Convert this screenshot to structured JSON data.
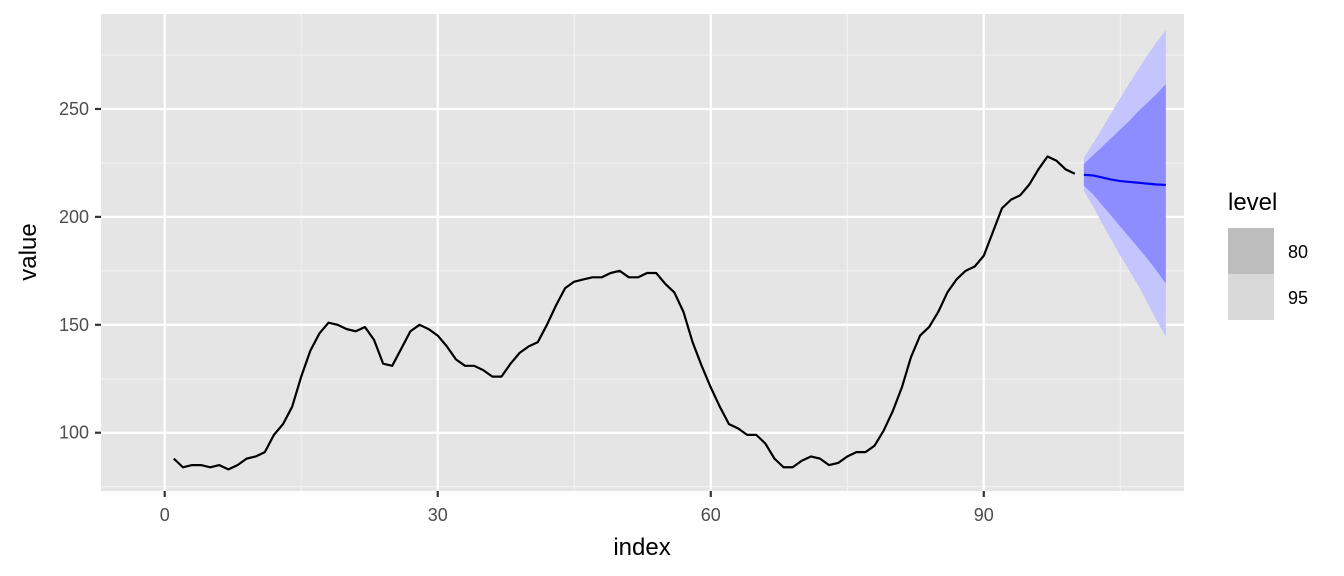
{
  "chart_data": {
    "type": "line",
    "title": "",
    "xlabel": "index",
    "ylabel": "value",
    "xlim": [
      -7,
      112
    ],
    "ylim": [
      73,
      294
    ],
    "x_ticks": [
      0,
      30,
      60,
      90
    ],
    "y_ticks": [
      100,
      150,
      200,
      250
    ],
    "x_tick_labels": [
      "0",
      "30",
      "60",
      "90"
    ],
    "y_tick_labels": [
      "100",
      "150",
      "200",
      "250"
    ],
    "grid": true,
    "background": "#e5e5e5",
    "series": [
      {
        "role": "observed",
        "color": "#000000",
        "x": [
          1,
          2,
          3,
          4,
          5,
          6,
          7,
          8,
          9,
          10,
          11,
          12,
          13,
          14,
          15,
          16,
          17,
          18,
          19,
          20,
          21,
          22,
          23,
          24,
          25,
          26,
          27,
          28,
          29,
          30,
          31,
          32,
          33,
          34,
          35,
          36,
          37,
          38,
          39,
          40,
          41,
          42,
          43,
          44,
          45,
          46,
          47,
          48,
          49,
          50,
          51,
          52,
          53,
          54,
          55,
          56,
          57,
          58,
          59,
          60,
          61,
          62,
          63,
          64,
          65,
          66,
          67,
          68,
          69,
          70,
          71,
          72,
          73,
          74,
          75,
          76,
          77,
          78,
          79,
          80,
          81,
          82,
          83,
          84,
          85,
          86,
          87,
          88,
          89,
          90,
          91,
          92,
          93,
          94,
          95,
          96,
          97,
          98,
          99,
          100
        ],
        "values": [
          88,
          84,
          85,
          85,
          84,
          85,
          83,
          85,
          88,
          89,
          91,
          99,
          104,
          112,
          126,
          138,
          146,
          151,
          150,
          148,
          147,
          149,
          143,
          132,
          131,
          139,
          147,
          150,
          148,
          145,
          140,
          134,
          131,
          131,
          129,
          126,
          126,
          132,
          137,
          140,
          142,
          150,
          159,
          167,
          170,
          171,
          172,
          172,
          174,
          175,
          172,
          172,
          174,
          174,
          169,
          165,
          156,
          142,
          131,
          121,
          112,
          104,
          102,
          99,
          99,
          95,
          88,
          84,
          84,
          87,
          89,
          88,
          85,
          86,
          89,
          91,
          91,
          94,
          101,
          110,
          121,
          135,
          145,
          149,
          156,
          165,
          171,
          175,
          177,
          182,
          193,
          204,
          208,
          210,
          215,
          222,
          228,
          226,
          222,
          220
        ]
      },
      {
        "role": "forecast",
        "color": "#0000ff",
        "x": [
          101,
          102,
          103,
          104,
          105,
          106,
          107,
          108,
          109,
          110
        ],
        "values": [
          219.5,
          219.2,
          218.3,
          217.3,
          216.6,
          216.2,
          215.8,
          215.4,
          215.0,
          214.8
        ],
        "lower80": [
          214.5,
          210.5,
          205.5,
          200.5,
          195.5,
          190.5,
          185.5,
          180.5,
          175.0,
          169.0
        ],
        "upper80": [
          224.5,
          228.5,
          232.5,
          236.5,
          240.5,
          244.5,
          249.0,
          253.0,
          257.0,
          261.5
        ],
        "lower95": [
          212.0,
          205.0,
          197.0,
          189.5,
          182.0,
          175.0,
          168.0,
          160.0,
          152.0,
          144.5
        ],
        "upper95": [
          227.5,
          234.0,
          241.0,
          248.0,
          255.0,
          262.0,
          268.5,
          275.0,
          281.0,
          286.5
        ]
      }
    ],
    "bands": [
      {
        "level": "80",
        "color": "#8d8dff"
      },
      {
        "level": "95",
        "color": "#c4c4ff"
      }
    ],
    "legend": {
      "title": "level",
      "position": "right",
      "items": [
        {
          "label": "80",
          "swatch_color": "#bdbdbd"
        },
        {
          "label": "95",
          "swatch_color": "#d9d9d9"
        }
      ]
    }
  }
}
